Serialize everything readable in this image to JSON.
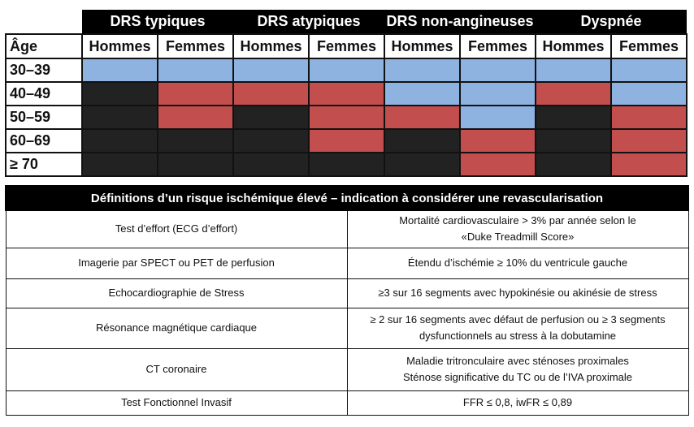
{
  "grid": {
    "corner_label": "Âge",
    "groups": [
      "DRS typiques",
      "DRS atypiques",
      "DRS non-angineuses",
      "Dyspnée"
    ],
    "sex_labels": [
      "Hommes",
      "Femmes",
      "Hommes",
      "Femmes",
      "Hommes",
      "Femmes",
      "Hommes",
      "Femmes"
    ],
    "colors": {
      "low": "#8fb3e0",
      "intermediate": "#c24e4e",
      "high": "#222222"
    },
    "rows": [
      {
        "age": "30–39",
        "levels": [
          "low",
          "low",
          "low",
          "low",
          "low",
          "low",
          "low",
          "low"
        ]
      },
      {
        "age": "40–49",
        "levels": [
          "high",
          "intermediate",
          "intermediate",
          "intermediate",
          "low",
          "low",
          "intermediate",
          "low"
        ]
      },
      {
        "age": "50–59",
        "levels": [
          "high",
          "intermediate",
          "high",
          "intermediate",
          "intermediate",
          "low",
          "high",
          "intermediate"
        ]
      },
      {
        "age": "60–69",
        "levels": [
          "high",
          "high",
          "high",
          "intermediate",
          "high",
          "intermediate",
          "high",
          "intermediate"
        ]
      },
      {
        "age": "≥ 70",
        "levels": [
          "high",
          "high",
          "high",
          "high",
          "high",
          "intermediate",
          "high",
          "intermediate"
        ]
      }
    ]
  },
  "definitions": {
    "title": "Définitions d’un risque ischémique élevé – indication à considérer une revascularisation",
    "rows": [
      {
        "test": "Test d’effort (ECG d’effort)",
        "criteria": [
          "Mortalité cardiovasculaire > 3% par année selon le",
          "«Duke Treadmill Score»"
        ]
      },
      {
        "test": "Imagerie par SPECT ou PET de perfusion",
        "criteria": [
          "Étendu d’ischémie ≥ 10% du ventricule gauche"
        ]
      },
      {
        "test": "Echocardiographie de Stress",
        "criteria": [
          "≥3 sur 16 segments avec hypokinésie ou akinésie de stress"
        ]
      },
      {
        "test": "Résonance magnétique cardiaque",
        "criteria": [
          "≥ 2 sur 16 segments avec défaut de perfusion ou ≥ 3 segments",
          "dysfunctionnels au stress à la dobutamine"
        ]
      },
      {
        "test": "CT coronaire",
        "criteria": [
          "Maladie tritronculaire avec sténoses proximales",
          "Sténose significative du TC ou de l’IVA proximale"
        ]
      },
      {
        "test": "Test Fonctionnel Invasif",
        "criteria": [
          "FFR ≤ 0,8, iwFR ≤ 0,89"
        ]
      }
    ]
  }
}
